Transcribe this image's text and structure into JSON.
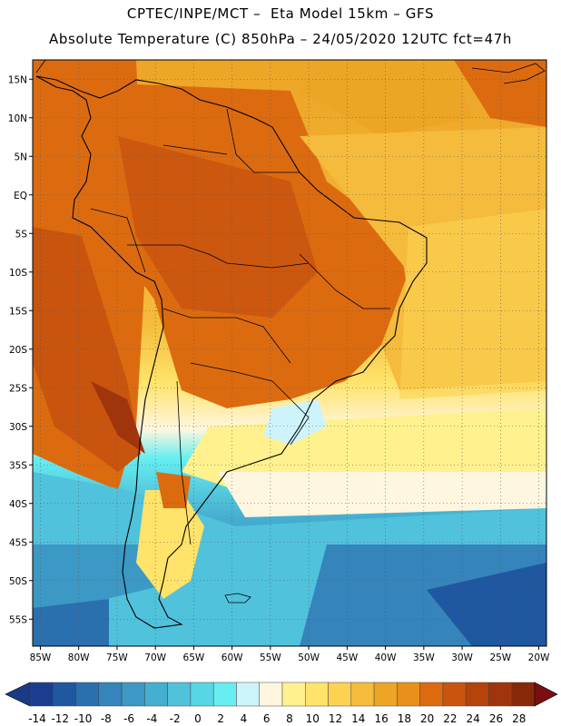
{
  "header": {
    "line1": "CPTEC/INPE/MCT –  Eta Model 15km – GFS",
    "line2": "Absolute Temperature (C) 850hPa – 24/05/2020 12UTC fct=47h"
  },
  "map": {
    "lon_range": [
      -86,
      -19
    ],
    "lat_range": [
      -58.5,
      17.5
    ],
    "lat_ticks": [
      {
        "value": 15,
        "label": "15N"
      },
      {
        "value": 10,
        "label": "10N"
      },
      {
        "value": 5,
        "label": "5N"
      },
      {
        "value": 0,
        "label": "EQ"
      },
      {
        "value": -5,
        "label": "5S"
      },
      {
        "value": -10,
        "label": "10S"
      },
      {
        "value": -15,
        "label": "15S"
      },
      {
        "value": -20,
        "label": "20S"
      },
      {
        "value": -25,
        "label": "25S"
      },
      {
        "value": -30,
        "label": "30S"
      },
      {
        "value": -35,
        "label": "35S"
      },
      {
        "value": -40,
        "label": "40S"
      },
      {
        "value": -45,
        "label": "45S"
      },
      {
        "value": -50,
        "label": "50S"
      },
      {
        "value": -55,
        "label": "55S"
      }
    ],
    "lon_ticks": [
      {
        "value": -85,
        "label": "85W"
      },
      {
        "value": -80,
        "label": "80W"
      },
      {
        "value": -75,
        "label": "75W"
      },
      {
        "value": -70,
        "label": "70W"
      },
      {
        "value": -65,
        "label": "65W"
      },
      {
        "value": -60,
        "label": "60W"
      },
      {
        "value": -55,
        "label": "55W"
      },
      {
        "value": -50,
        "label": "50W"
      },
      {
        "value": -45,
        "label": "45W"
      },
      {
        "value": -40,
        "label": "40W"
      },
      {
        "value": -35,
        "label": "35W"
      },
      {
        "value": -30,
        "label": "30W"
      },
      {
        "value": -25,
        "label": "25W"
      },
      {
        "value": -20,
        "label": "20W"
      }
    ]
  },
  "colorbar": {
    "labels": [
      "-14",
      "-12",
      "-10",
      "-8",
      "-6",
      "-4",
      "-2",
      "0",
      "2",
      "4",
      "6",
      "8",
      "10",
      "12",
      "14",
      "16",
      "18",
      "20",
      "22",
      "24",
      "26",
      "28"
    ],
    "colors": [
      "#1c3d8f",
      "#1f57a0",
      "#2a6fae",
      "#3584bb",
      "#3c98c4",
      "#46aed0",
      "#50c2dc",
      "#58d6e6",
      "#66eef0",
      "#cdf4fb",
      "#fff6e0",
      "#fff18e",
      "#ffe36a",
      "#fbd252",
      "#f4bb3c",
      "#eda526",
      "#e8901a",
      "#dc6b10",
      "#c9540e",
      "#b5430c",
      "#a0350c",
      "#86280a"
    ],
    "under_color": "#1b3a86",
    "over_color": "#7a0f12"
  }
}
